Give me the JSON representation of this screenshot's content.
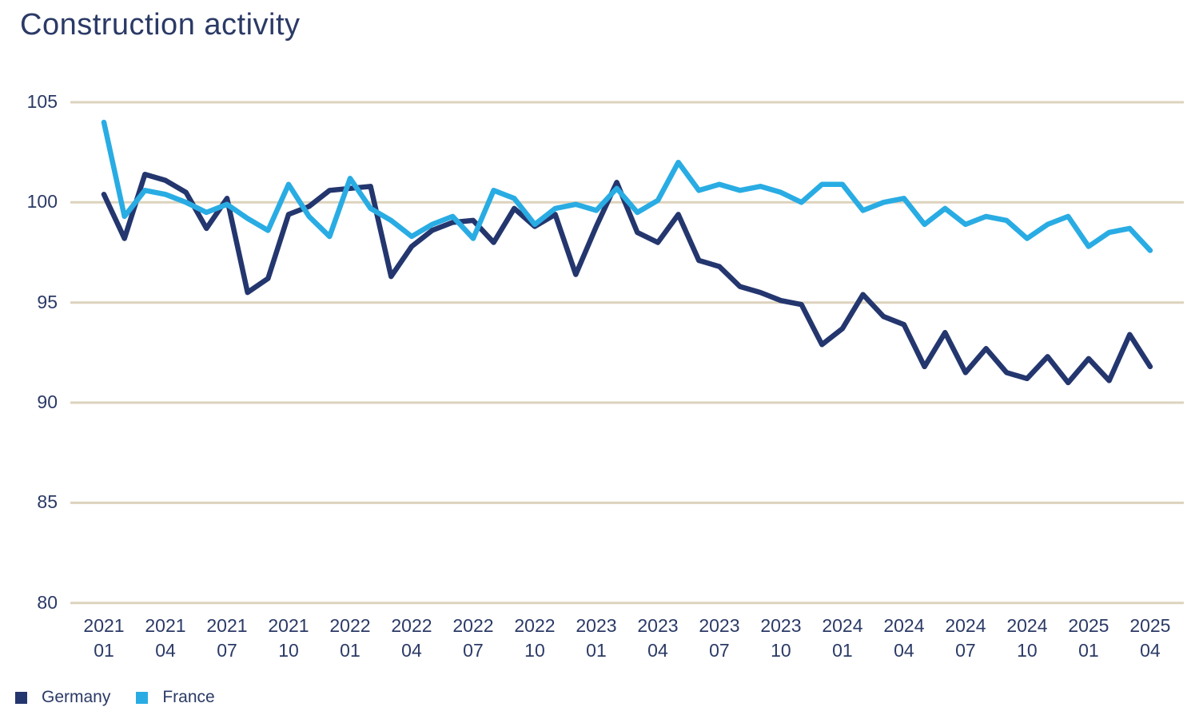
{
  "title": "Construction activity",
  "colors": {
    "germany": "#24366e",
    "france": "#29ace3",
    "grid": "#ddd3bd",
    "text": "#2b3a66",
    "background": "#ffffff"
  },
  "legend": {
    "items": [
      {
        "label": "Germany",
        "color": "#24366e"
      },
      {
        "label": "France",
        "color": "#29ace3"
      }
    ]
  },
  "chart_data": {
    "type": "line",
    "title": "Construction activity",
    "x_unit": "month",
    "grid": "horizontal",
    "legend_position": "bottom-left",
    "ylim": [
      80,
      105
    ],
    "y_ticks": [
      105,
      100,
      95,
      90,
      85,
      80
    ],
    "x_tick_every_n_months": 3,
    "x_tick_labels": [
      {
        "year": "2021",
        "month": "01"
      },
      {
        "year": "2021",
        "month": "04"
      },
      {
        "year": "2021",
        "month": "07"
      },
      {
        "year": "2021",
        "month": "10"
      },
      {
        "year": "2022",
        "month": "01"
      },
      {
        "year": "2022",
        "month": "04"
      },
      {
        "year": "2022",
        "month": "07"
      },
      {
        "year": "2022",
        "month": "10"
      },
      {
        "year": "2023",
        "month": "01"
      },
      {
        "year": "2023",
        "month": "04"
      },
      {
        "year": "2023",
        "month": "07"
      },
      {
        "year": "2023",
        "month": "10"
      },
      {
        "year": "2024",
        "month": "01"
      },
      {
        "year": "2024",
        "month": "04"
      },
      {
        "year": "2024",
        "month": "07"
      },
      {
        "year": "2024",
        "month": "10"
      },
      {
        "year": "2025",
        "month": "01"
      },
      {
        "year": "2025",
        "month": "04"
      }
    ],
    "months": [
      "2021-01",
      "2021-02",
      "2021-03",
      "2021-04",
      "2021-05",
      "2021-06",
      "2021-07",
      "2021-08",
      "2021-09",
      "2021-10",
      "2021-11",
      "2021-12",
      "2022-01",
      "2022-02",
      "2022-03",
      "2022-04",
      "2022-05",
      "2022-06",
      "2022-07",
      "2022-08",
      "2022-09",
      "2022-10",
      "2022-11",
      "2022-12",
      "2023-01",
      "2023-02",
      "2023-03",
      "2023-04",
      "2023-05",
      "2023-06",
      "2023-07",
      "2023-08",
      "2023-09",
      "2023-10",
      "2023-11",
      "2023-12",
      "2024-01",
      "2024-02",
      "2024-03",
      "2024-04",
      "2024-05",
      "2024-06",
      "2024-07",
      "2024-08",
      "2024-09",
      "2024-10",
      "2024-11",
      "2024-12",
      "2025-01",
      "2025-02",
      "2025-03",
      "2025-04"
    ],
    "series": [
      {
        "name": "Germany",
        "color": "#24366e",
        "values": [
          100.4,
          98.2,
          101.4,
          101.1,
          100.5,
          98.7,
          100.2,
          95.5,
          96.2,
          99.4,
          99.8,
          100.6,
          100.7,
          100.8,
          96.3,
          97.8,
          98.6,
          99.0,
          99.1,
          98.0,
          99.7,
          98.8,
          99.4,
          96.4,
          98.8,
          101.0,
          98.5,
          98.0,
          99.4,
          97.1,
          96.8,
          95.8,
          95.5,
          95.1,
          94.9,
          92.9,
          93.7,
          95.4,
          94.3,
          93.9,
          91.8,
          93.5,
          91.5,
          92.7,
          91.5,
          91.2,
          92.3,
          91.0,
          92.2,
          91.1,
          93.4,
          91.8
        ]
      },
      {
        "name": "France",
        "color": "#29ace3",
        "values": [
          104.0,
          99.3,
          100.6,
          100.4,
          100.0,
          99.5,
          99.9,
          99.2,
          98.6,
          100.9,
          99.3,
          98.3,
          101.2,
          99.7,
          99.1,
          98.3,
          98.9,
          99.3,
          98.2,
          100.6,
          100.2,
          98.9,
          99.7,
          99.9,
          99.6,
          100.7,
          99.5,
          100.1,
          102.0,
          100.6,
          100.9,
          100.6,
          100.8,
          100.5,
          100.0,
          100.9,
          100.9,
          99.6,
          100.0,
          100.2,
          98.9,
          99.7,
          98.9,
          99.3,
          99.1,
          98.2,
          98.9,
          99.3,
          97.8,
          98.5,
          98.7,
          97.6
        ]
      }
    ]
  }
}
